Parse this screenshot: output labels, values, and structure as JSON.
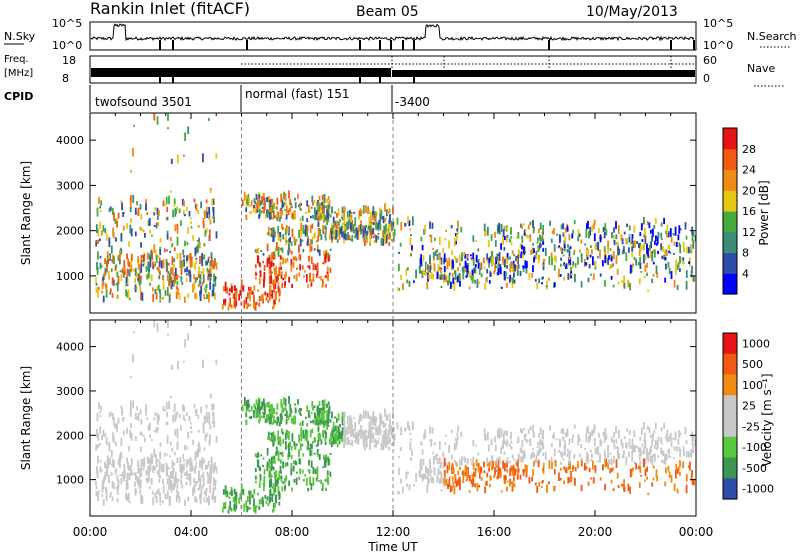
{
  "header": {
    "station": "Rankin Inlet (fitACF)",
    "beam": "Beam 05",
    "date": "10/May/2013"
  },
  "noise_panel": {
    "left_label": "N.Sky",
    "right_label": "N.Search",
    "left_ticks": [
      "10^5",
      "10^0"
    ],
    "right_ticks": [
      "10^5",
      "10^0"
    ]
  },
  "freq_panel": {
    "left_label_line1": "Freq.",
    "left_label_line2": "[MHz]",
    "right_label": "Nave",
    "left_ticks": [
      "18",
      "8"
    ],
    "right_ticks": [
      "60",
      "0"
    ]
  },
  "cpid": {
    "label": "CPID",
    "segments": [
      {
        "start_hour": 0,
        "text": "twofsound 3501"
      },
      {
        "start_hour": 6,
        "text": "normal (fast) 151"
      },
      {
        "start_hour": 12,
        "text": "-3400"
      }
    ]
  },
  "colors": {
    "power": [
      "#0000ff",
      "#2c4ea8",
      "#3c8c78",
      "#46aa3c",
      "#e6c814",
      "#f08c14",
      "#f05a14",
      "#e61414"
    ],
    "velocity": [
      "#e61414",
      "#f05a14",
      "#f08c14",
      "#c8c8c8",
      "#c8c8c8",
      "#5ac83c",
      "#3c9650",
      "#2c4ea8"
    ]
  },
  "chart_data": [
    {
      "type": "heatmap",
      "name": "power",
      "ylabel": "Slant Range [km]",
      "xlim_hours": [
        0,
        24
      ],
      "ylim_km": [
        180,
        4600
      ],
      "yticks": [
        1000,
        2000,
        3000,
        4000
      ],
      "colorbar_label": "Power [dB]",
      "colorbar_ticks": [
        "4",
        "8",
        "12",
        "16",
        "20",
        "24",
        "28"
      ]
    },
    {
      "type": "heatmap",
      "name": "velocity",
      "xlabel": "Time UT",
      "ylabel": "Slant Range [km]",
      "xlim_hours": [
        0,
        24
      ],
      "ylim_km": [
        180,
        4600
      ],
      "yticks": [
        1000,
        2000,
        3000,
        4000
      ],
      "xtick_labels": [
        "00:00",
        "04:00",
        "08:00",
        "12:00",
        "16:00",
        "20:00",
        "00:00"
      ],
      "colorbar_label": "Velocity [m s⁻¹]",
      "colorbar_ticks": [
        "1000",
        "500",
        "100",
        "25",
        "-25",
        "-100",
        "-500",
        "-1000"
      ]
    }
  ]
}
